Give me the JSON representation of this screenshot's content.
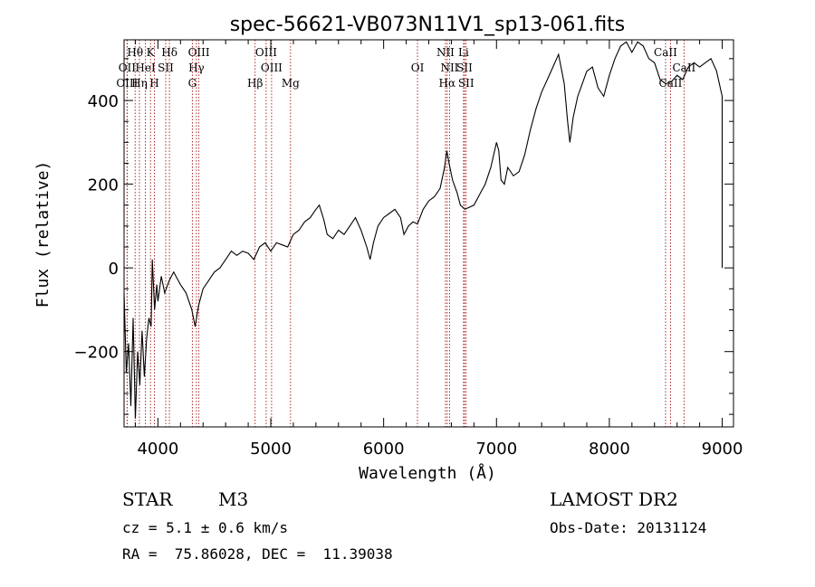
{
  "chart_data": {
    "type": "line",
    "title": "spec-56621-VB073N11V1_sp13-061.fits",
    "xlabel": "Wavelength (Å)",
    "ylabel": "Flux (relative)",
    "xlim": [
      3700,
      9100
    ],
    "ylim": [
      -380,
      545
    ],
    "xticks": [
      4000,
      5000,
      6000,
      7000,
      8000,
      9000
    ],
    "yticks": [
      -200,
      0,
      200,
      400
    ],
    "grid": false,
    "series": [
      {
        "points": [
          [
            3700,
            -60
          ],
          [
            3720,
            -250
          ],
          [
            3740,
            -180
          ],
          [
            3760,
            -330
          ],
          [
            3780,
            -120
          ],
          [
            3800,
            -360
          ],
          [
            3820,
            -200
          ],
          [
            3840,
            -280
          ],
          [
            3860,
            -150
          ],
          [
            3880,
            -260
          ],
          [
            3900,
            -170
          ],
          [
            3920,
            -120
          ],
          [
            3940,
            -140
          ],
          [
            3950,
            20
          ],
          [
            3970,
            -100
          ],
          [
            3990,
            -40
          ],
          [
            4000,
            -80
          ],
          [
            4030,
            -20
          ],
          [
            4060,
            -60
          ],
          [
            4100,
            -30
          ],
          [
            4140,
            -10
          ],
          [
            4200,
            -40
          ],
          [
            4250,
            -60
          ],
          [
            4300,
            -100
          ],
          [
            4330,
            -140
          ],
          [
            4360,
            -90
          ],
          [
            4400,
            -50
          ],
          [
            4450,
            -30
          ],
          [
            4500,
            -10
          ],
          [
            4550,
            0
          ],
          [
            4600,
            20
          ],
          [
            4650,
            40
          ],
          [
            4700,
            30
          ],
          [
            4750,
            40
          ],
          [
            4800,
            35
          ],
          [
            4850,
            20
          ],
          [
            4900,
            50
          ],
          [
            4950,
            60
          ],
          [
            5000,
            40
          ],
          [
            5050,
            60
          ],
          [
            5100,
            55
          ],
          [
            5150,
            50
          ],
          [
            5200,
            80
          ],
          [
            5250,
            90
          ],
          [
            5300,
            110
          ],
          [
            5350,
            120
          ],
          [
            5400,
            140
          ],
          [
            5430,
            150
          ],
          [
            5470,
            115
          ],
          [
            5500,
            80
          ],
          [
            5550,
            70
          ],
          [
            5600,
            90
          ],
          [
            5650,
            80
          ],
          [
            5700,
            100
          ],
          [
            5750,
            120
          ],
          [
            5800,
            90
          ],
          [
            5850,
            50
          ],
          [
            5880,
            20
          ],
          [
            5910,
            60
          ],
          [
            5950,
            100
          ],
          [
            6000,
            120
          ],
          [
            6050,
            130
          ],
          [
            6100,
            140
          ],
          [
            6150,
            120
          ],
          [
            6180,
            80
          ],
          [
            6220,
            100
          ],
          [
            6260,
            110
          ],
          [
            6300,
            105
          ],
          [
            6350,
            140
          ],
          [
            6400,
            160
          ],
          [
            6450,
            170
          ],
          [
            6500,
            190
          ],
          [
            6540,
            240
          ],
          [
            6560,
            280
          ],
          [
            6580,
            250
          ],
          [
            6610,
            210
          ],
          [
            6650,
            180
          ],
          [
            6680,
            150
          ],
          [
            6720,
            140
          ],
          [
            6800,
            150
          ],
          [
            6860,
            180
          ],
          [
            6900,
            200
          ],
          [
            6950,
            240
          ],
          [
            7000,
            300
          ],
          [
            7020,
            280
          ],
          [
            7040,
            210
          ],
          [
            7070,
            200
          ],
          [
            7100,
            240
          ],
          [
            7150,
            220
          ],
          [
            7200,
            230
          ],
          [
            7250,
            270
          ],
          [
            7300,
            330
          ],
          [
            7350,
            380
          ],
          [
            7400,
            420
          ],
          [
            7450,
            450
          ],
          [
            7500,
            480
          ],
          [
            7550,
            510
          ],
          [
            7600,
            440
          ],
          [
            7630,
            350
          ],
          [
            7650,
            300
          ],
          [
            7680,
            360
          ],
          [
            7720,
            410
          ],
          [
            7760,
            440
          ],
          [
            7800,
            470
          ],
          [
            7850,
            480
          ],
          [
            7900,
            430
          ],
          [
            7950,
            410
          ],
          [
            8000,
            460
          ],
          [
            8050,
            500
          ],
          [
            8100,
            530
          ],
          [
            8150,
            540
          ],
          [
            8200,
            515
          ],
          [
            8250,
            540
          ],
          [
            8300,
            530
          ],
          [
            8350,
            500
          ],
          [
            8400,
            490
          ],
          [
            8450,
            450
          ],
          [
            8500,
            440
          ],
          [
            8550,
            445
          ],
          [
            8600,
            460
          ],
          [
            8650,
            450
          ],
          [
            8700,
            480
          ],
          [
            8750,
            490
          ],
          [
            8800,
            480
          ],
          [
            8850,
            490
          ],
          [
            8900,
            500
          ],
          [
            8950,
            470
          ],
          [
            9000,
            410
          ],
          [
            9000,
            0
          ]
        ]
      }
    ],
    "line_markers": [
      {
        "label": "OIII",
        "x": 3727,
        "row": 2
      },
      {
        "label": "OII",
        "x": 3727,
        "row": 1
      },
      {
        "label": "Hθ",
        "x": 3798,
        "row": 0
      },
      {
        "label": "Hη",
        "x": 3836,
        "row": 2
      },
      {
        "label": "HeI",
        "x": 3889,
        "row": 1
      },
      {
        "label": "K",
        "x": 3934,
        "row": 0
      },
      {
        "label": "SII",
        "x": 4069,
        "row": 1
      },
      {
        "label": "H",
        "x": 3969,
        "row": 2
      },
      {
        "label": "Hδ",
        "x": 4102,
        "row": 0
      },
      {
        "label": "OIII",
        "x": 4363,
        "row": 0
      },
      {
        "label": "Hγ",
        "x": 4341,
        "row": 1
      },
      {
        "label": "G",
        "x": 4305,
        "row": 2
      },
      {
        "label": "Hβ",
        "x": 4861,
        "row": 2
      },
      {
        "label": "OIII",
        "x": 4959,
        "row": 0
      },
      {
        "label": "OIII",
        "x": 5007,
        "row": 1
      },
      {
        "label": "Mg",
        "x": 5175,
        "row": 2
      },
      {
        "label": "OI",
        "x": 6300,
        "row": 1
      },
      {
        "label": "NII",
        "x": 6548,
        "row": 0
      },
      {
        "label": "NII",
        "x": 6584,
        "row": 1
      },
      {
        "label": "Hα",
        "x": 6563,
        "row": 2
      },
      {
        "label": "Li",
        "x": 6708,
        "row": 0
      },
      {
        "label": "SII",
        "x": 6717,
        "row": 1
      },
      {
        "label": "SII",
        "x": 6731,
        "row": 2
      },
      {
        "label": "CaII",
        "x": 8498,
        "row": 0
      },
      {
        "label": "CaII",
        "x": 8542,
        "row": 2
      },
      {
        "label": "CaII",
        "x": 8662,
        "row": 1
      }
    ]
  },
  "info": {
    "object_class": "STAR",
    "subclass": "M3",
    "survey": "LAMOST DR2",
    "redshift": "cz = 5.1 ± 0.6 km/s",
    "obs_date": "Obs-Date: 20131124",
    "coords": "RA =  75.86028, DEC =  11.39038"
  }
}
